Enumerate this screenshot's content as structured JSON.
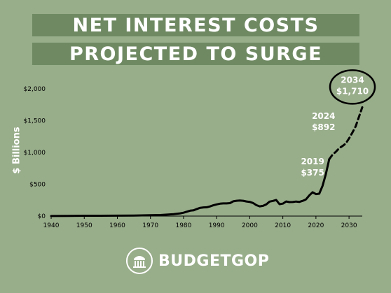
{
  "header": {
    "title_line1": "NET INTEREST COSTS",
    "title_line2": "PROJECTED TO SURGE"
  },
  "brand": {
    "name": "BUDGETGOP"
  },
  "colors": {
    "background": "#98ad8a",
    "title_bar": "#6f8a63",
    "line": "#000000",
    "text": "#ffffff"
  },
  "chart_data": {
    "type": "line",
    "title": "NET INTEREST COSTS PROJECTED TO SURGE",
    "ylabel": "$ Billions",
    "xlabel": "",
    "xlim": [
      1940,
      2034
    ],
    "ylim": [
      0,
      2000
    ],
    "x_ticks": [
      1940,
      1950,
      1960,
      1970,
      1980,
      1990,
      2000,
      2010,
      2020,
      2030
    ],
    "y_ticks": [
      0,
      500,
      1000,
      1500,
      2000
    ],
    "y_tick_labels": [
      "$0",
      "$500",
      "$1,000",
      "$1,500",
      "$2,000"
    ],
    "grid": false,
    "series": [
      {
        "style": "solid",
        "x": [
          1940,
          1945,
          1950,
          1955,
          1960,
          1965,
          1970,
          1973,
          1975,
          1977,
          1979,
          1980,
          1981,
          1982,
          1983,
          1984,
          1985,
          1986,
          1987,
          1988,
          1989,
          1990,
          1991,
          1992,
          1993,
          1994,
          1995,
          1996,
          1997,
          1998,
          1999,
          2000,
          2001,
          2002,
          2003,
          2004,
          2005,
          2006,
          2007,
          2008,
          2009,
          2010,
          2011,
          2012,
          2013,
          2014,
          2015,
          2016,
          2017,
          2018,
          2019,
          2020,
          2021,
          2022,
          2023,
          2024
        ],
        "y": [
          1,
          3,
          5,
          5,
          7,
          9,
          14,
          17,
          23,
          30,
          43,
          53,
          69,
          85,
          90,
          111,
          130,
          136,
          139,
          152,
          169,
          184,
          194,
          199,
          199,
          203,
          232,
          241,
          244,
          241,
          230,
          223,
          206,
          171,
          153,
          160,
          184,
          227,
          238,
          253,
          187,
          196,
          230,
          220,
          221,
          229,
          223,
          240,
          263,
          325,
          375,
          345,
          352,
          475,
          658,
          892
        ]
      },
      {
        "style": "dashed",
        "x": [
          2024,
          2025,
          2026,
          2027,
          2028,
          2029,
          2030,
          2031,
          2032,
          2033,
          2034
        ],
        "y": [
          892,
          965,
          1010,
          1065,
          1100,
          1140,
          1220,
          1310,
          1410,
          1560,
          1710
        ]
      }
    ],
    "annotations": [
      {
        "year": "2019",
        "value": "$375",
        "x": 2019,
        "y": 375
      },
      {
        "year": "2024",
        "value": "$892",
        "x": 2024,
        "y": 892
      },
      {
        "year": "2034",
        "value": "$1,710",
        "x": 2034,
        "y": 1710,
        "circled": true
      }
    ]
  }
}
